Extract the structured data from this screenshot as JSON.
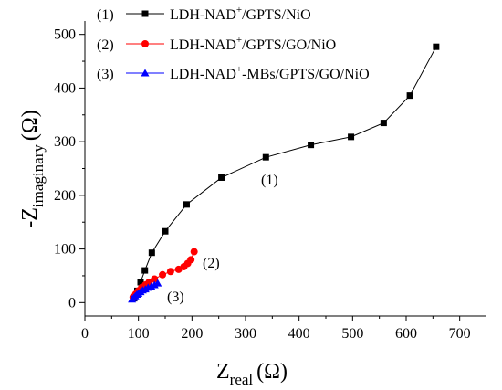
{
  "chart_data": {
    "type": "line",
    "xlabel": {
      "main": "Z",
      "sub": "real",
      "unit": "(Ω)"
    },
    "ylabel": {
      "main": "-Z",
      "sub": "imaginary",
      "unit": "(Ω)"
    },
    "xlim": [
      0,
      750
    ],
    "ylim": [
      -25,
      525
    ],
    "xticks": [
      0,
      100,
      200,
      300,
      400,
      500,
      600,
      700
    ],
    "yticks": [
      0,
      100,
      200,
      300,
      400,
      500
    ],
    "xtick_labels": [
      "0",
      "100",
      "200",
      "300",
      "400",
      "500",
      "600",
      "700"
    ],
    "ytick_labels": [
      "0",
      "100",
      "200",
      "300",
      "400",
      "500"
    ],
    "legend_position": "top-left",
    "series": [
      {
        "name": "LDH-NAD+/GPTS/NiO",
        "legend_prefix": "(1)",
        "legend_parts": {
          "pre": "LDH-NAD",
          "sup": "+",
          "post": "/GPTS/NiO"
        },
        "color": "#000000",
        "marker": "square",
        "annotation": "(1)",
        "x": [
          92,
          98,
          104,
          112,
          125,
          150,
          190,
          255,
          338,
          422,
          497,
          558,
          607,
          656
        ],
        "y": [
          8,
          22,
          38,
          60,
          93,
          133,
          183,
          233,
          271,
          294,
          309,
          335,
          386,
          477
        ]
      },
      {
        "name": "LDH-NAD+/GPTS/GO/NiO",
        "legend_prefix": "(2)",
        "legend_parts": {
          "pre": "LDH-NAD",
          "sup": "+",
          "post": "/GPTS/GO/NiO"
        },
        "color": "#ff0000",
        "marker": "circle",
        "annotation": "(2)",
        "x": [
          90,
          95,
          100,
          106,
          113,
          120,
          130,
          145,
          160,
          175,
          185,
          192,
          198,
          204
        ],
        "y": [
          10,
          16,
          22,
          28,
          33,
          38,
          44,
          52,
          58,
          62,
          67,
          73,
          80,
          95
        ]
      },
      {
        "name": "LDH-NAD+-MBs/GPTS/GO/NiO",
        "legend_prefix": "(3)",
        "legend_parts": {
          "pre": "LDH-NAD",
          "sup": "+",
          "post": "-MBs/GPTS/GO/NiO"
        },
        "color": "#0000ff",
        "marker": "triangle",
        "annotation": "(3)",
        "x": [
          88,
          91,
          94,
          97,
          100,
          104,
          108,
          113,
          118,
          124,
          130,
          136
        ],
        "y": [
          6,
          9,
          12,
          15,
          17,
          20,
          23,
          25,
          28,
          30,
          33,
          36
        ]
      }
    ]
  }
}
